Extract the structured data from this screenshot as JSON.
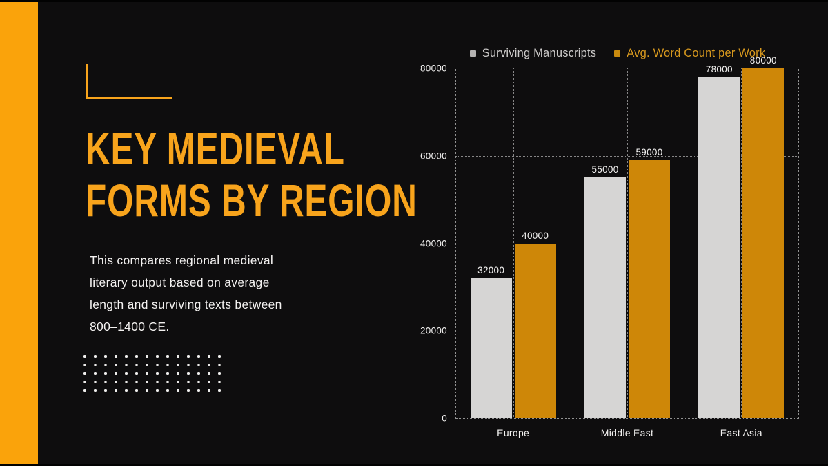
{
  "slide": {
    "background": "#0E0D0E",
    "accent_color": "#FAA30B",
    "title_color": "#F8A41C",
    "title_lines": [
      "KEY MEDIEVAL",
      "FORMS BY REGION"
    ],
    "description_lines": [
      "This compares regional medieval",
      "literary output based on average",
      "length and surviving texts between",
      "800–1400 CE."
    ],
    "decor": {
      "dot_rows": 5,
      "dot_cols": 14
    }
  },
  "chart_data": {
    "type": "bar",
    "title": "",
    "categories": [
      "Europe",
      "Middle East",
      "East Asia"
    ],
    "series": [
      {
        "name": "Surviving Manuscripts",
        "values": [
          32000,
          55000,
          78000
        ],
        "color": "#D6D5D4",
        "marker_color": "#B5B3B2",
        "legend_text_color": "#CDCBCA"
      },
      {
        "name": "Avg. Word Count per Work",
        "values": [
          40000,
          59000,
          80000
        ],
        "color": "#CE8708",
        "marker_color": "#C98A0E",
        "legend_text_color": "#D8991E"
      }
    ],
    "ylim": [
      0,
      80000
    ],
    "yticks": [
      0,
      20000,
      40000,
      60000,
      80000
    ],
    "grid": "dotted",
    "legend_position": "top",
    "bar_value_labels": true
  }
}
